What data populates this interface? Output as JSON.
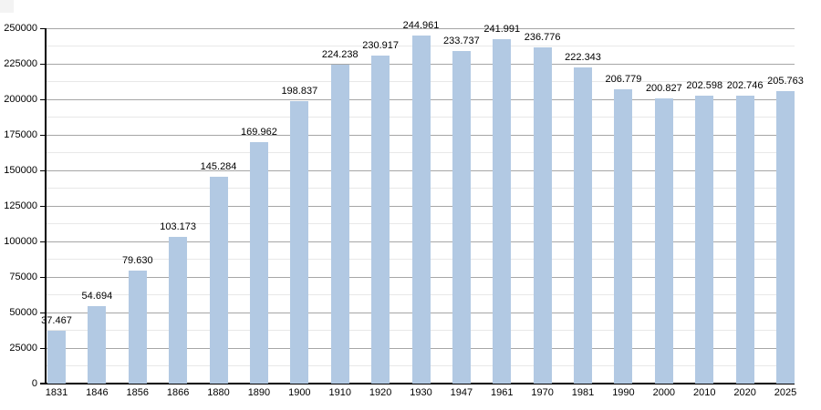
{
  "chart_data": {
    "type": "bar",
    "title": "",
    "xlabel": "",
    "ylabel": "",
    "categories": [
      "1831",
      "1846",
      "1856",
      "1866",
      "1880",
      "1890",
      "1900",
      "1910",
      "1920",
      "1930",
      "1947",
      "1961",
      "1970",
      "1981",
      "1990",
      "2000",
      "2010",
      "2020",
      "2025"
    ],
    "values": [
      37467,
      54694,
      79630,
      103173,
      145284,
      169962,
      198837,
      224238,
      230917,
      244961,
      233737,
      241991,
      236776,
      222343,
      206779,
      200827,
      202598,
      202746,
      205763
    ],
    "value_labels": [
      "37.467",
      "54.694",
      "79.630",
      "103.173",
      "145.284",
      "169.962",
      "198.837",
      "224.238",
      "230.917",
      "244.961",
      "233.737",
      "241.991",
      "236.776",
      "222.343",
      "206.779",
      "200.827",
      "202.598",
      "202.746",
      "205.763"
    ],
    "ylim": [
      0,
      250000
    ],
    "y_major_step": 25000,
    "y_minor_step": 12500,
    "y_tick_labels": [
      "0",
      "25000",
      "50000",
      "75000",
      "100000",
      "125000",
      "150000",
      "175000",
      "200000",
      "225000",
      "250000"
    ],
    "grid": true,
    "legend_position": "none",
    "colors": {
      "background": "#ffffff",
      "bar_fill": "#b2c9e3",
      "major_grid": "#a6a6a6",
      "minor_grid": "#e8e8e8",
      "axis": "#000000",
      "text": "#000000"
    }
  }
}
